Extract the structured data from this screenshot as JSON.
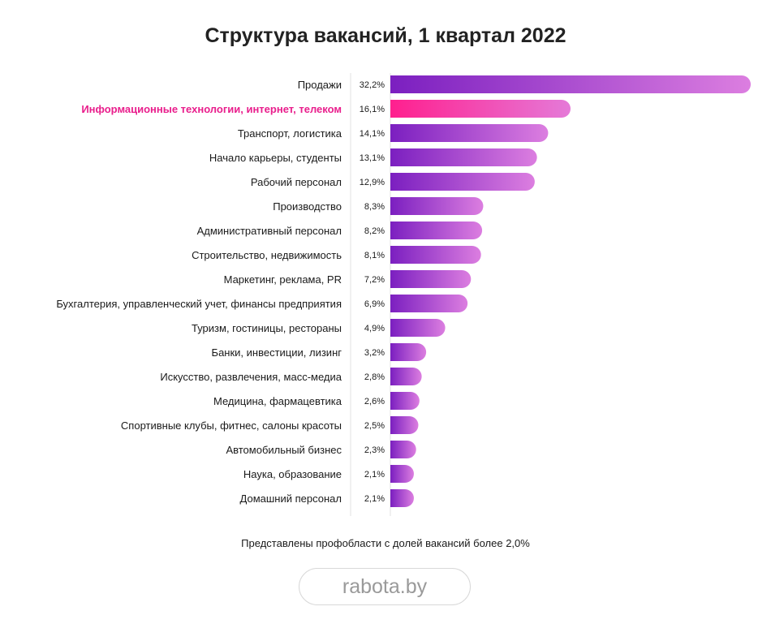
{
  "chart_data": {
    "type": "bar",
    "orientation": "horizontal",
    "title": "Структура вакансий, 1 квартал 2022",
    "categories": [
      "Продажи",
      "Информационные технологии, интернет, телеком",
      "Транспорт, логистика",
      "Начало карьеры, студенты",
      "Рабочий персонал",
      "Производство",
      "Административный персонал",
      "Строительство, недвижимость",
      "Маркетинг, реклама, PR",
      "Бухгалтерия, управленческий учет, финансы предприятия",
      "Туризм, гостиницы, рестораны",
      "Банки, инвестиции, лизинг",
      "Искусство, развлечения, масс-медиа",
      "Медицина, фармацевтика",
      "Спортивные клубы, фитнес, салоны красоты",
      "Автомобильный бизнес",
      "Наука, образование",
      "Домашний персонал"
    ],
    "values": [
      32.2,
      16.1,
      14.1,
      13.1,
      12.9,
      8.3,
      8.2,
      8.1,
      7.2,
      6.9,
      4.9,
      3.2,
      2.8,
      2.6,
      2.5,
      2.3,
      2.1,
      2.1
    ],
    "value_labels": [
      "32,2%",
      "16,1%",
      "14,1%",
      "13,1%",
      "12,9%",
      "8,3%",
      "8,2%",
      "8,1%",
      "7,2%",
      "6,9%",
      "4,9%",
      "3,2%",
      "2,8%",
      "2,6%",
      "2,5%",
      "2,3%",
      "2,1%",
      "2,1%"
    ],
    "highlighted_category": "Информационные технологии, интернет, телеком",
    "xlim": [
      0,
      32.2
    ],
    "grid": false,
    "colors": {
      "bar_start": "#7b1fc0",
      "bar_end": "#dc7ee0",
      "highlight_start": "#ff1f8e",
      "highlight_end": "#e57ad8",
      "highlight_label": "#e91e8c"
    }
  },
  "footnote": "Представлены профобласти с долей вакансий более 2,0%",
  "brand": "rabota.by"
}
